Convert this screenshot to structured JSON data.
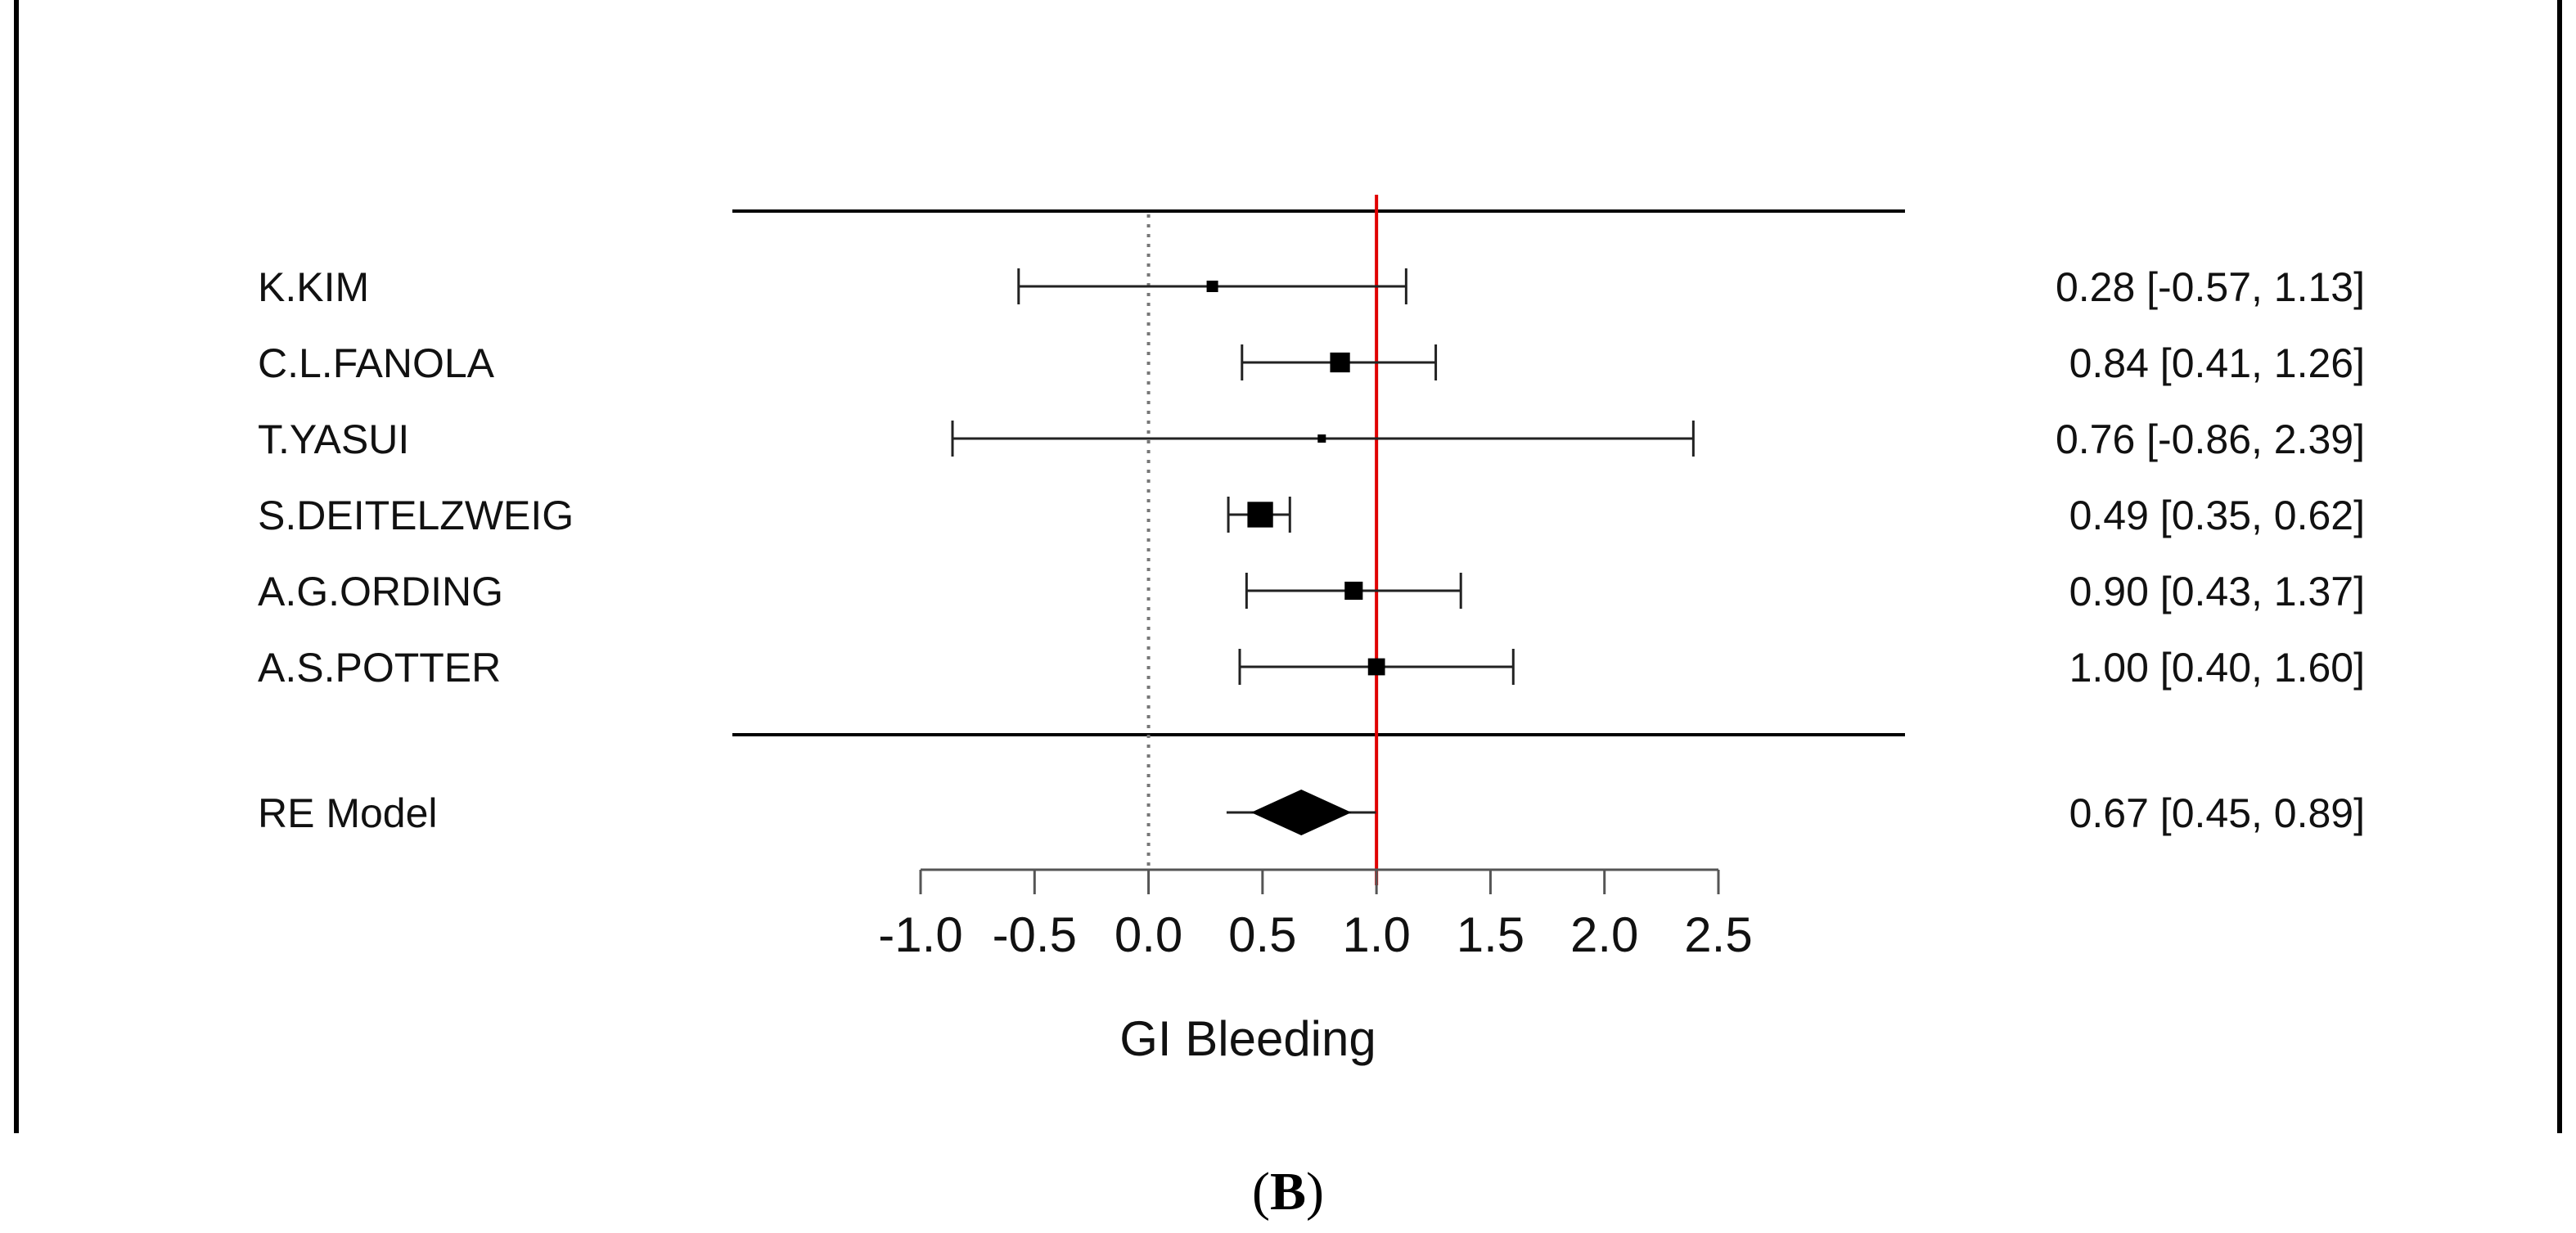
{
  "panel_label": {
    "open": "(",
    "letter": "B",
    "close": ")"
  },
  "chart_data": {
    "type": "forest",
    "xlabel": "GI Bleeding",
    "xlim": [
      -1.0,
      2.5
    ],
    "xticks": [
      -1.0,
      -0.5,
      0.0,
      0.5,
      1.0,
      1.5,
      2.0,
      2.5
    ],
    "xtick_labels": [
      "-1.0",
      "-0.5",
      "0.0",
      "0.5",
      "1.0",
      "1.5",
      "2.0",
      "2.5"
    ],
    "null_line": 0.0,
    "reference_line": 1.0,
    "reference_line_color": "#e00000",
    "studies": [
      {
        "name": "K.KIM",
        "estimate": 0.28,
        "lower": -0.57,
        "upper": 1.13,
        "label": "0.28 [-0.57, 1.13]",
        "weight": 1
      },
      {
        "name": "C.L.FANOLA",
        "estimate": 0.84,
        "lower": 0.41,
        "upper": 1.26,
        "label": "0.84 [0.41, 1.26]",
        "weight": 3
      },
      {
        "name": "T.YASUI",
        "estimate": 0.76,
        "lower": -0.86,
        "upper": 2.39,
        "label": "0.76 [-0.86, 2.39]",
        "weight": 0.4
      },
      {
        "name": "S.DEITELZWEIG",
        "estimate": 0.49,
        "lower": 0.35,
        "upper": 0.62,
        "label": "0.49 [0.35, 0.62]",
        "weight": 5
      },
      {
        "name": "A.G.ORDING",
        "estimate": 0.9,
        "lower": 0.43,
        "upper": 1.37,
        "label": "0.90 [0.43, 1.37]",
        "weight": 2.5
      },
      {
        "name": "A.S.POTTER",
        "estimate": 1.0,
        "lower": 0.4,
        "upper": 1.6,
        "label": "1.00 [0.40, 1.60]",
        "weight": 2.2
      }
    ],
    "summary": {
      "name": "RE Model",
      "estimate": 0.67,
      "lower": 0.45,
      "upper": 0.89,
      "label": "0.67 [0.45, 0.89]"
    }
  }
}
